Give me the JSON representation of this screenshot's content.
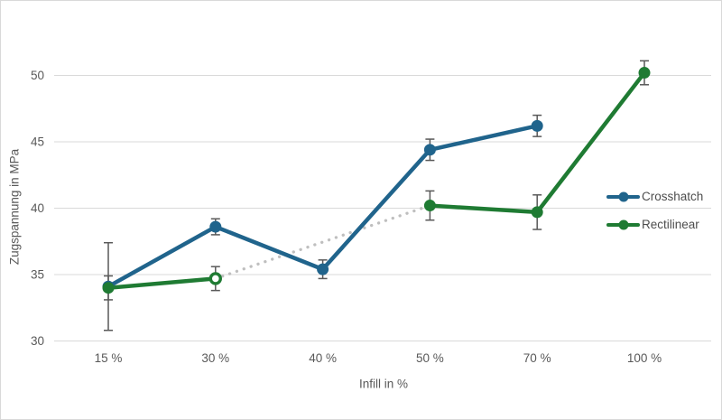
{
  "chart_data": {
    "type": "line",
    "title": "",
    "xlabel": "Infill in %",
    "ylabel": "Zugspannung in MPa",
    "categories": [
      "15 %",
      "30 %",
      "40 %",
      "50 %",
      "70 %",
      "100 %"
    ],
    "yticks": [
      30,
      35,
      40,
      45,
      50
    ],
    "ylim": [
      30,
      50
    ],
    "grid": "horizontal",
    "legend_position": "right-overlay",
    "series": [
      {
        "name": "Crosshatch",
        "color": "#20648c",
        "values": [
          34.1,
          38.6,
          35.4,
          44.4,
          46.2,
          null
        ],
        "errors": [
          3.3,
          0.6,
          0.7,
          0.8,
          0.8,
          null
        ],
        "markers": [
          "filled",
          "filled",
          "filled",
          "filled",
          "filled",
          null
        ]
      },
      {
        "name": "Rectilinear",
        "color": "#1f7b33",
        "values": [
          34.0,
          34.7,
          null,
          40.2,
          39.7,
          50.2
        ],
        "errors": [
          0.9,
          0.9,
          null,
          1.1,
          1.3,
          0.9
        ],
        "markers": [
          "filled",
          "open",
          null,
          "filled",
          "filled",
          "filled"
        ]
      }
    ],
    "connector": {
      "style": "dotted",
      "color": "#bfbfbf",
      "from": {
        "category": "30 %",
        "value": 34.7
      },
      "to": {
        "category": "50 %",
        "value": 40.2
      }
    },
    "colors": {
      "gridline": "#d9d9d9",
      "error_bar": "#595959",
      "axis_text": "#595959",
      "border": "#d9d9d9",
      "background": "#ffffff"
    }
  }
}
